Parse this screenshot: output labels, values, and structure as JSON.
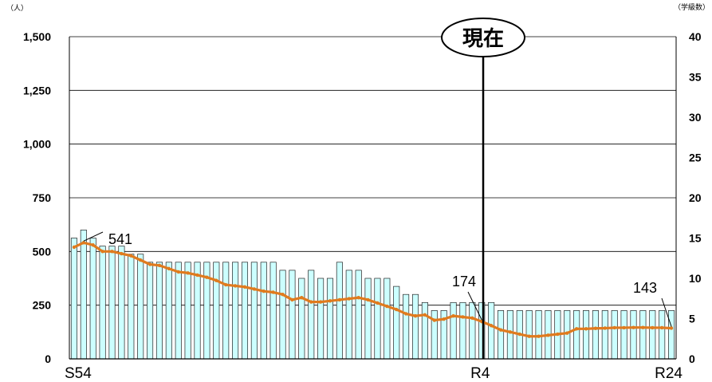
{
  "chart_data": {
    "type": "bar+line",
    "title": "",
    "left_axis": {
      "unit_label": "（人）",
      "ylim": [
        0,
        1500
      ],
      "ticks": [
        0,
        250,
        500,
        750,
        1000,
        1250,
        1500
      ],
      "tick_labels": [
        "0",
        "250",
        "500",
        "750",
        "1,000",
        "1,250",
        "1,500"
      ]
    },
    "right_axis": {
      "unit_label": "（学級数）",
      "ylim": [
        0,
        40
      ],
      "ticks": [
        0,
        5,
        10,
        15,
        20,
        25,
        30,
        35,
        40
      ],
      "tick_labels": [
        "0",
        "5",
        "10",
        "15",
        "20",
        "25",
        "30",
        "35",
        "40"
      ]
    },
    "x_axis": {
      "tick_labels": [
        "S54",
        "R4",
        "R24"
      ],
      "tick_indices": [
        0,
        43,
        63
      ]
    },
    "grid": "horizontal",
    "current_marker": {
      "label": "現在",
      "index": 43
    },
    "series": [
      {
        "kind": "bar",
        "axis": "right",
        "color": "#ccffff",
        "values": [
          15,
          16,
          15,
          14,
          14,
          14,
          13,
          13,
          12,
          12,
          12,
          12,
          12,
          12,
          12,
          12,
          12,
          12,
          12,
          12,
          12,
          12,
          11,
          11,
          10,
          11,
          10,
          10,
          12,
          11,
          11,
          10,
          10,
          10,
          9,
          8,
          8,
          7,
          6,
          6,
          7,
          7,
          7,
          7,
          7,
          6,
          6,
          6,
          6,
          6,
          6,
          6,
          6,
          6,
          6,
          6,
          6,
          6,
          6,
          6,
          6,
          6,
          6,
          6
        ]
      },
      {
        "kind": "line",
        "axis": "left",
        "color": "#e07b1e",
        "values": [
          520,
          541,
          530,
          500,
          500,
          490,
          480,
          460,
          440,
          435,
          420,
          405,
          400,
          390,
          380,
          365,
          345,
          340,
          335,
          325,
          315,
          310,
          300,
          275,
          285,
          265,
          265,
          270,
          275,
          280,
          285,
          275,
          260,
          245,
          230,
          210,
          200,
          205,
          180,
          185,
          200,
          195,
          190,
          174,
          155,
          135,
          125,
          115,
          105,
          105,
          110,
          115,
          120,
          140,
          140,
          142,
          143,
          145,
          145,
          146,
          146,
          145,
          145,
          143
        ]
      }
    ],
    "annotations": [
      {
        "index": 1,
        "label": "541"
      },
      {
        "index": 43,
        "label": "174"
      },
      {
        "index": 63,
        "label": "143"
      }
    ]
  }
}
